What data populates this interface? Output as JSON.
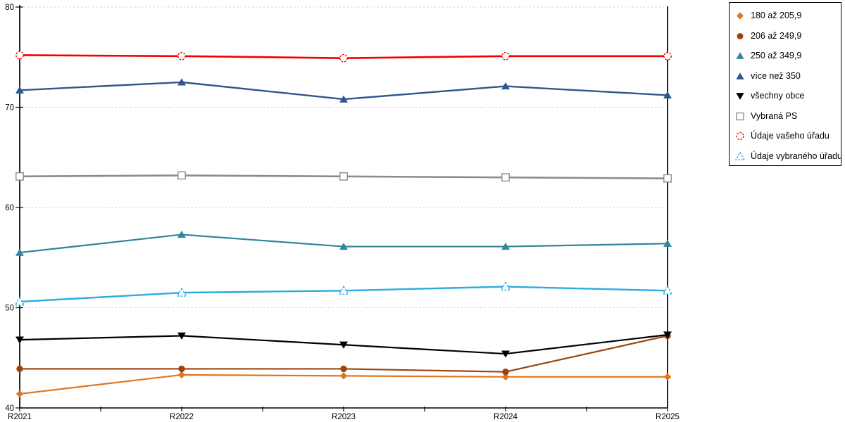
{
  "chart_data": {
    "type": "line",
    "title": "",
    "xlabel": "",
    "ylabel": "",
    "x_categories": [
      "R2021",
      "R2022",
      "R2023",
      "R2024",
      "R2025"
    ],
    "ylim": [
      40,
      80
    ],
    "y_ticks": [
      40,
      50,
      60,
      70,
      80
    ],
    "gridlines_dotted_at": [
      50,
      60,
      70,
      80
    ],
    "x_minor_ticks_between_categories": true,
    "legend_position": "outside-top-right",
    "grid_color": "#c9c9c9",
    "axis_color": "#000000",
    "series": [
      {
        "name": "180 až 205,9",
        "color": "#e2751d",
        "marker": "diamond",
        "fill": "filled",
        "dashed_outline": false,
        "line_width": 2.2,
        "values": [
          41.4,
          43.3,
          43.2,
          43.1,
          43.1
        ]
      },
      {
        "name": "206 až 249,9",
        "color": "#9c4411",
        "marker": "circle",
        "fill": "filled",
        "dashed_outline": false,
        "line_width": 2.2,
        "values": [
          43.9,
          43.9,
          43.9,
          43.6,
          47.2
        ]
      },
      {
        "name": "250 až 349,9",
        "color": "#31859c",
        "marker": "triangle-up",
        "fill": "filled",
        "dashed_outline": false,
        "line_width": 2.2,
        "values": [
          55.5,
          57.3,
          56.1,
          56.1,
          56.4
        ]
      },
      {
        "name": "více než 350",
        "color": "#2e578c",
        "marker": "triangle-up",
        "fill": "filled",
        "dashed_outline": false,
        "line_width": 2.4,
        "values": [
          71.7,
          72.5,
          70.8,
          72.1,
          71.2
        ]
      },
      {
        "name": "všechny obce",
        "color": "#000000",
        "marker": "triangle-down",
        "fill": "filled",
        "dashed_outline": false,
        "line_width": 2.2,
        "values": [
          46.8,
          47.2,
          46.3,
          45.4,
          47.3
        ]
      },
      {
        "name": "Vybraná PS",
        "color": "#8c8c8c",
        "marker": "square",
        "fill": "open",
        "dashed_outline": false,
        "line_width": 2.6,
        "values": [
          63.1,
          63.2,
          63.1,
          63.0,
          62.9
        ]
      },
      {
        "name": "Údaje vašeho úřadu",
        "color": "#f50000",
        "marker": "circle",
        "fill": "open",
        "dashed_outline": true,
        "line_width": 2.6,
        "values": [
          75.2,
          75.1,
          74.9,
          75.1,
          75.1
        ]
      },
      {
        "name": "Údaje vybraného úřadu",
        "color": "#29ace2",
        "marker": "triangle-up",
        "fill": "open",
        "dashed_outline": true,
        "line_width": 2.4,
        "values": [
          50.6,
          51.5,
          51.7,
          52.1,
          51.7
        ]
      }
    ]
  }
}
